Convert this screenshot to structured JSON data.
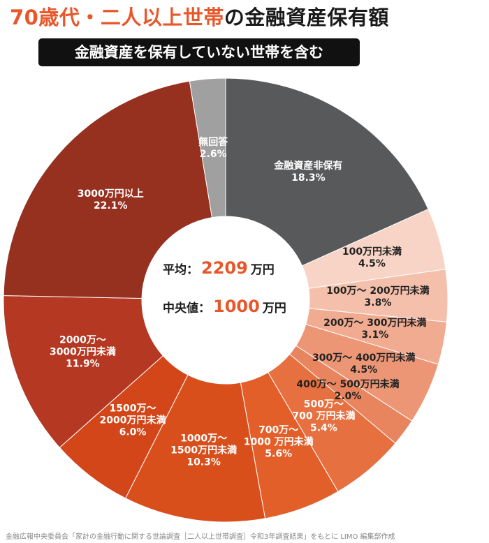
{
  "chart_data": {
    "type": "donut",
    "title": {
      "highlight": "70歳代・二人以上世帯",
      "rest": "の金融資産保有額"
    },
    "subtitle": "金融資産を保有していない世帯を含む",
    "categories": [
      "金融資産非保有",
      "100万円未満",
      "100万～ 200万円未満",
      "200万～ 300万円未満",
      "300万～ 400万円未満",
      "400万～ 500万円未満",
      "500万～\n700 万円未満",
      "700万～\n1000 万円未満",
      "1000万～\n1500万円未満",
      "1500万～\n2000万円未満",
      "2000万～\n3000万円未満",
      "3000万円以上",
      "無回答"
    ],
    "values": [
      18.3,
      4.5,
      3.8,
      3.1,
      4.5,
      2.0,
      5.4,
      5.6,
      10.3,
      6.0,
      11.9,
      22.1,
      2.6
    ],
    "value_labels": [
      "18.3%",
      "4.5%",
      "3.8%",
      "3.1%",
      "4.5%",
      "2.0%",
      "5.4%",
      "5.6%",
      "10.3%",
      "6.0%",
      "11.9%",
      "22.1%",
      "2.6%"
    ],
    "colors": [
      "#58595b",
      "#f8d4c6",
      "#f4c0ab",
      "#f0ab90",
      "#ec9676",
      "#e8845e",
      "#e6703f",
      "#e35f2a",
      "#d94f1c",
      "#d2461a",
      "#b43822",
      "#96301f",
      "#a0a0a0"
    ],
    "label_colors": [
      "#ffffff",
      "#222222",
      "#222222",
      "#222222",
      "#222222",
      "#222222",
      "#ffffff",
      "#ffffff",
      "#ffffff",
      "#ffffff",
      "#ffffff",
      "#ffffff",
      "#ffffff"
    ],
    "center": [
      {
        "label": "平均：",
        "value": 2209,
        "unit": "万円"
      },
      {
        "label": "中央値：",
        "value": 1000,
        "unit": "万円"
      }
    ],
    "source": "金融広報中央委員会「家計の金融行動に関する世論調査［二人以上世帯調査］令和3年調査結果」をもとに LIMO 編集部作成"
  }
}
